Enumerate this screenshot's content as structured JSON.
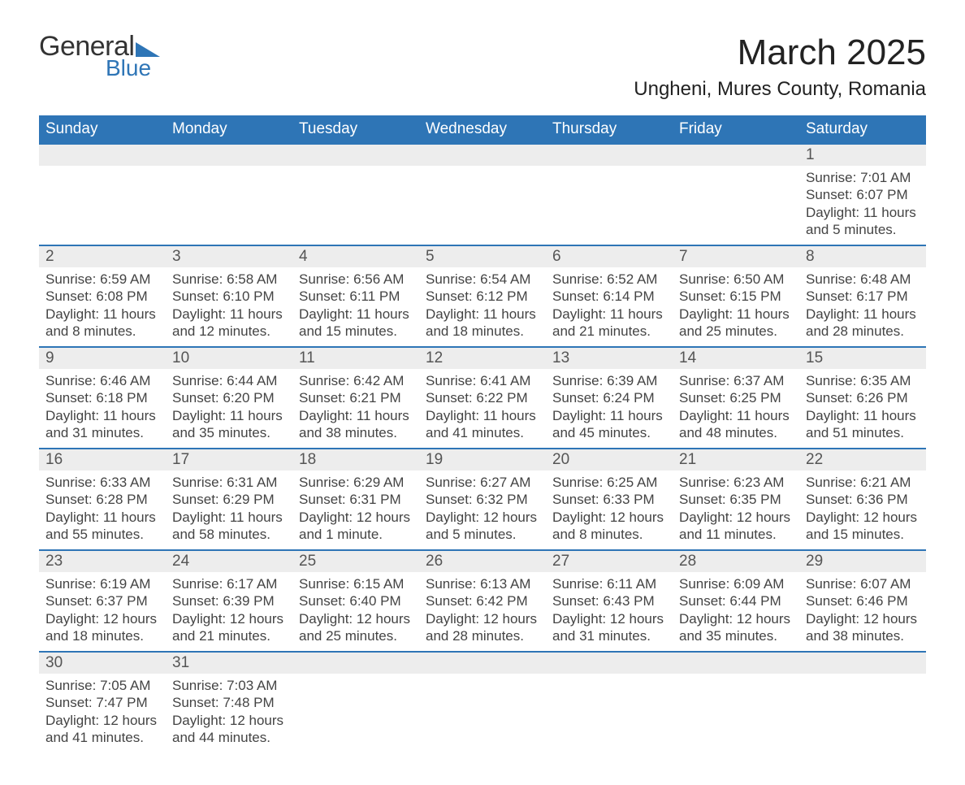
{
  "brand": {
    "general": "General",
    "blue": "Blue",
    "tri_color": "#2e75b6"
  },
  "title": "March 2025",
  "location": "Ungheni, Mures County, Romania",
  "colors": {
    "header_bg": "#2e75b6",
    "header_fg": "#ffffff",
    "daynum_bg": "#ededed",
    "text": "#444444",
    "rule": "#2e75b6"
  },
  "weekdays": [
    "Sunday",
    "Monday",
    "Tuesday",
    "Wednesday",
    "Thursday",
    "Friday",
    "Saturday"
  ],
  "weeks": [
    [
      null,
      null,
      null,
      null,
      null,
      null,
      {
        "n": "1",
        "sr": "Sunrise: 7:01 AM",
        "ss": "Sunset: 6:07 PM",
        "dl1": "Daylight: 11 hours",
        "dl2": "and 5 minutes."
      }
    ],
    [
      {
        "n": "2",
        "sr": "Sunrise: 6:59 AM",
        "ss": "Sunset: 6:08 PM",
        "dl1": "Daylight: 11 hours",
        "dl2": "and 8 minutes."
      },
      {
        "n": "3",
        "sr": "Sunrise: 6:58 AM",
        "ss": "Sunset: 6:10 PM",
        "dl1": "Daylight: 11 hours",
        "dl2": "and 12 minutes."
      },
      {
        "n": "4",
        "sr": "Sunrise: 6:56 AM",
        "ss": "Sunset: 6:11 PM",
        "dl1": "Daylight: 11 hours",
        "dl2": "and 15 minutes."
      },
      {
        "n": "5",
        "sr": "Sunrise: 6:54 AM",
        "ss": "Sunset: 6:12 PM",
        "dl1": "Daylight: 11 hours",
        "dl2": "and 18 minutes."
      },
      {
        "n": "6",
        "sr": "Sunrise: 6:52 AM",
        "ss": "Sunset: 6:14 PM",
        "dl1": "Daylight: 11 hours",
        "dl2": "and 21 minutes."
      },
      {
        "n": "7",
        "sr": "Sunrise: 6:50 AM",
        "ss": "Sunset: 6:15 PM",
        "dl1": "Daylight: 11 hours",
        "dl2": "and 25 minutes."
      },
      {
        "n": "8",
        "sr": "Sunrise: 6:48 AM",
        "ss": "Sunset: 6:17 PM",
        "dl1": "Daylight: 11 hours",
        "dl2": "and 28 minutes."
      }
    ],
    [
      {
        "n": "9",
        "sr": "Sunrise: 6:46 AM",
        "ss": "Sunset: 6:18 PM",
        "dl1": "Daylight: 11 hours",
        "dl2": "and 31 minutes."
      },
      {
        "n": "10",
        "sr": "Sunrise: 6:44 AM",
        "ss": "Sunset: 6:20 PM",
        "dl1": "Daylight: 11 hours",
        "dl2": "and 35 minutes."
      },
      {
        "n": "11",
        "sr": "Sunrise: 6:42 AM",
        "ss": "Sunset: 6:21 PM",
        "dl1": "Daylight: 11 hours",
        "dl2": "and 38 minutes."
      },
      {
        "n": "12",
        "sr": "Sunrise: 6:41 AM",
        "ss": "Sunset: 6:22 PM",
        "dl1": "Daylight: 11 hours",
        "dl2": "and 41 minutes."
      },
      {
        "n": "13",
        "sr": "Sunrise: 6:39 AM",
        "ss": "Sunset: 6:24 PM",
        "dl1": "Daylight: 11 hours",
        "dl2": "and 45 minutes."
      },
      {
        "n": "14",
        "sr": "Sunrise: 6:37 AM",
        "ss": "Sunset: 6:25 PM",
        "dl1": "Daylight: 11 hours",
        "dl2": "and 48 minutes."
      },
      {
        "n": "15",
        "sr": "Sunrise: 6:35 AM",
        "ss": "Sunset: 6:26 PM",
        "dl1": "Daylight: 11 hours",
        "dl2": "and 51 minutes."
      }
    ],
    [
      {
        "n": "16",
        "sr": "Sunrise: 6:33 AM",
        "ss": "Sunset: 6:28 PM",
        "dl1": "Daylight: 11 hours",
        "dl2": "and 55 minutes."
      },
      {
        "n": "17",
        "sr": "Sunrise: 6:31 AM",
        "ss": "Sunset: 6:29 PM",
        "dl1": "Daylight: 11 hours",
        "dl2": "and 58 minutes."
      },
      {
        "n": "18",
        "sr": "Sunrise: 6:29 AM",
        "ss": "Sunset: 6:31 PM",
        "dl1": "Daylight: 12 hours",
        "dl2": "and 1 minute."
      },
      {
        "n": "19",
        "sr": "Sunrise: 6:27 AM",
        "ss": "Sunset: 6:32 PM",
        "dl1": "Daylight: 12 hours",
        "dl2": "and 5 minutes."
      },
      {
        "n": "20",
        "sr": "Sunrise: 6:25 AM",
        "ss": "Sunset: 6:33 PM",
        "dl1": "Daylight: 12 hours",
        "dl2": "and 8 minutes."
      },
      {
        "n": "21",
        "sr": "Sunrise: 6:23 AM",
        "ss": "Sunset: 6:35 PM",
        "dl1": "Daylight: 12 hours",
        "dl2": "and 11 minutes."
      },
      {
        "n": "22",
        "sr": "Sunrise: 6:21 AM",
        "ss": "Sunset: 6:36 PM",
        "dl1": "Daylight: 12 hours",
        "dl2": "and 15 minutes."
      }
    ],
    [
      {
        "n": "23",
        "sr": "Sunrise: 6:19 AM",
        "ss": "Sunset: 6:37 PM",
        "dl1": "Daylight: 12 hours",
        "dl2": "and 18 minutes."
      },
      {
        "n": "24",
        "sr": "Sunrise: 6:17 AM",
        "ss": "Sunset: 6:39 PM",
        "dl1": "Daylight: 12 hours",
        "dl2": "and 21 minutes."
      },
      {
        "n": "25",
        "sr": "Sunrise: 6:15 AM",
        "ss": "Sunset: 6:40 PM",
        "dl1": "Daylight: 12 hours",
        "dl2": "and 25 minutes."
      },
      {
        "n": "26",
        "sr": "Sunrise: 6:13 AM",
        "ss": "Sunset: 6:42 PM",
        "dl1": "Daylight: 12 hours",
        "dl2": "and 28 minutes."
      },
      {
        "n": "27",
        "sr": "Sunrise: 6:11 AM",
        "ss": "Sunset: 6:43 PM",
        "dl1": "Daylight: 12 hours",
        "dl2": "and 31 minutes."
      },
      {
        "n": "28",
        "sr": "Sunrise: 6:09 AM",
        "ss": "Sunset: 6:44 PM",
        "dl1": "Daylight: 12 hours",
        "dl2": "and 35 minutes."
      },
      {
        "n": "29",
        "sr": "Sunrise: 6:07 AM",
        "ss": "Sunset: 6:46 PM",
        "dl1": "Daylight: 12 hours",
        "dl2": "and 38 minutes."
      }
    ],
    [
      {
        "n": "30",
        "sr": "Sunrise: 7:05 AM",
        "ss": "Sunset: 7:47 PM",
        "dl1": "Daylight: 12 hours",
        "dl2": "and 41 minutes."
      },
      {
        "n": "31",
        "sr": "Sunrise: 7:03 AM",
        "ss": "Sunset: 7:48 PM",
        "dl1": "Daylight: 12 hours",
        "dl2": "and 44 minutes."
      },
      null,
      null,
      null,
      null,
      null
    ]
  ]
}
